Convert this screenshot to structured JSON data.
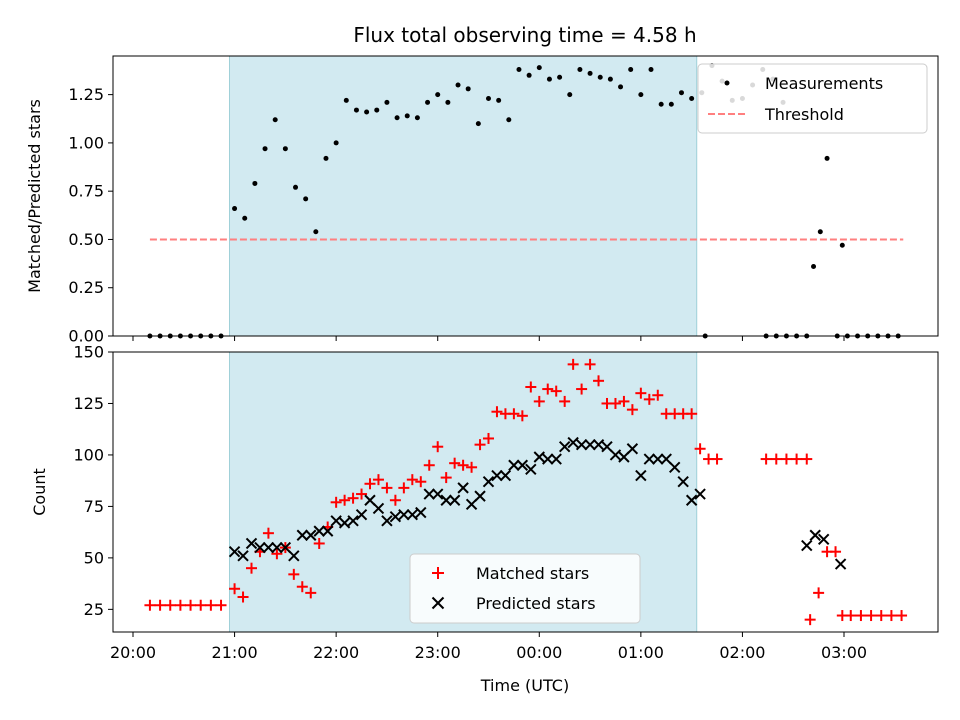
{
  "chart_data": [
    {
      "type": "scatter",
      "title": "Flux total observing time = 4.58 h",
      "xlabel": "",
      "ylabel": "Matched/Predicted stars",
      "xlim": [
        "20:00",
        "03:55"
      ],
      "ylim": [
        0,
        1.45
      ],
      "yticks": [
        "0.00",
        "0.25",
        "0.50",
        "0.75",
        "1.00",
        "1.25"
      ],
      "grid": false,
      "legend_position": "top-right",
      "shaded_span": {
        "start": "20:57",
        "end": "01:33",
        "color": "#add8e6"
      },
      "threshold": {
        "name": "Threshold",
        "value": 0.5,
        "x_start": "20:10",
        "x_end": "03:35",
        "color": "#ff7f7f"
      },
      "series": [
        {
          "name": "Measurements",
          "color": "#000000",
          "marker": "dot",
          "points": [
            [
              "20:10",
              0
            ],
            [
              "20:16",
              0
            ],
            [
              "20:22",
              0
            ],
            [
              "20:28",
              0
            ],
            [
              "20:34",
              0
            ],
            [
              "20:40",
              0
            ],
            [
              "20:46",
              0
            ],
            [
              "20:52",
              0
            ],
            [
              "21:00",
              0.66
            ],
            [
              "21:06",
              0.61
            ],
            [
              "21:12",
              0.79
            ],
            [
              "21:18",
              0.97
            ],
            [
              "21:24",
              1.12
            ],
            [
              "21:30",
              0.97
            ],
            [
              "21:36",
              0.77
            ],
            [
              "21:42",
              0.71
            ],
            [
              "21:48",
              0.54
            ],
            [
              "21:54",
              0.92
            ],
            [
              "22:00",
              1.0
            ],
            [
              "22:06",
              1.22
            ],
            [
              "22:12",
              1.17
            ],
            [
              "22:18",
              1.16
            ],
            [
              "22:24",
              1.17
            ],
            [
              "22:30",
              1.21
            ],
            [
              "22:36",
              1.13
            ],
            [
              "22:42",
              1.14
            ],
            [
              "22:48",
              1.13
            ],
            [
              "22:54",
              1.21
            ],
            [
              "23:00",
              1.25
            ],
            [
              "23:06",
              1.21
            ],
            [
              "23:12",
              1.3
            ],
            [
              "23:18",
              1.28
            ],
            [
              "23:24",
              1.1
            ],
            [
              "23:30",
              1.23
            ],
            [
              "23:36",
              1.22
            ],
            [
              "23:42",
              1.12
            ],
            [
              "23:48",
              1.38
            ],
            [
              "23:54",
              1.35
            ],
            [
              "00:00",
              1.39
            ],
            [
              "00:06",
              1.33
            ],
            [
              "00:12",
              1.34
            ],
            [
              "00:18",
              1.25
            ],
            [
              "00:24",
              1.38
            ],
            [
              "00:30",
              1.36
            ],
            [
              "00:36",
              1.34
            ],
            [
              "00:42",
              1.33
            ],
            [
              "00:48",
              1.29
            ],
            [
              "00:54",
              1.38
            ],
            [
              "01:00",
              1.25
            ],
            [
              "01:06",
              1.38
            ],
            [
              "01:12",
              1.2
            ],
            [
              "01:18",
              1.2
            ],
            [
              "01:24",
              1.26
            ],
            [
              "01:30",
              1.23
            ],
            [
              "01:36",
              1.26
            ],
            [
              "01:42",
              1.4
            ],
            [
              "01:48",
              1.32
            ],
            [
              "01:54",
              1.22
            ],
            [
              "02:00",
              1.23
            ],
            [
              "02:06",
              1.3
            ],
            [
              "02:12",
              1.38
            ],
            [
              "02:18",
              1.33
            ],
            [
              "02:24",
              1.21
            ],
            [
              "01:38",
              0
            ],
            [
              "02:14",
              0
            ],
            [
              "02:20",
              0
            ],
            [
              "02:26",
              0
            ],
            [
              "02:32",
              0
            ],
            [
              "02:38",
              0
            ],
            [
              "02:42",
              0.36
            ],
            [
              "02:46",
              0.54
            ],
            [
              "02:50",
              0.92
            ],
            [
              "02:56",
              0
            ],
            [
              "02:59",
              0.47
            ],
            [
              "03:02",
              0
            ],
            [
              "03:08",
              0
            ],
            [
              "03:14",
              0
            ],
            [
              "03:20",
              0
            ],
            [
              "03:26",
              0
            ],
            [
              "03:32",
              0
            ]
          ]
        }
      ]
    },
    {
      "type": "scatter",
      "title": "",
      "xlabel": "Time (UTC)",
      "ylabel": "Count",
      "xlim": [
        "20:00",
        "03:55"
      ],
      "ylim": [
        14,
        150
      ],
      "xticks": [
        "20:00",
        "21:00",
        "22:00",
        "23:00",
        "00:00",
        "01:00",
        "02:00",
        "03:00"
      ],
      "yticks": [
        "25",
        "50",
        "75",
        "100",
        "125",
        "150"
      ],
      "grid": false,
      "legend_position": "bottom-center",
      "shaded_span": {
        "start": "20:57",
        "end": "01:33",
        "color": "#add8e6"
      },
      "series": [
        {
          "name": "Matched stars",
          "color": "#ff0000",
          "marker": "plus",
          "points": [
            [
              "20:10",
              27
            ],
            [
              "20:16",
              27
            ],
            [
              "20:22",
              27
            ],
            [
              "20:28",
              27
            ],
            [
              "20:34",
              27
            ],
            [
              "20:40",
              27
            ],
            [
              "20:46",
              27
            ],
            [
              "20:52",
              27
            ],
            [
              "21:00",
              35
            ],
            [
              "21:05",
              31
            ],
            [
              "21:10",
              45
            ],
            [
              "21:15",
              53
            ],
            [
              "21:20",
              62
            ],
            [
              "21:25",
              52
            ],
            [
              "21:30",
              55
            ],
            [
              "21:35",
              42
            ],
            [
              "21:40",
              36
            ],
            [
              "21:45",
              33
            ],
            [
              "21:50",
              57
            ],
            [
              "21:55",
              65
            ],
            [
              "22:00",
              77
            ],
            [
              "22:05",
              78
            ],
            [
              "22:10",
              79
            ],
            [
              "22:15",
              81
            ],
            [
              "22:20",
              86
            ],
            [
              "22:25",
              88
            ],
            [
              "22:30",
              84
            ],
            [
              "22:35",
              78
            ],
            [
              "22:40",
              84
            ],
            [
              "22:45",
              88
            ],
            [
              "22:50",
              87
            ],
            [
              "22:55",
              95
            ],
            [
              "23:00",
              104
            ],
            [
              "23:05",
              89
            ],
            [
              "23:10",
              96
            ],
            [
              "23:15",
              95
            ],
            [
              "23:20",
              94
            ],
            [
              "23:25",
              105
            ],
            [
              "23:30",
              108
            ],
            [
              "23:35",
              121
            ],
            [
              "23:40",
              120
            ],
            [
              "23:45",
              120
            ],
            [
              "23:50",
              119
            ],
            [
              "23:55",
              133
            ],
            [
              "00:00",
              126
            ],
            [
              "00:05",
              132
            ],
            [
              "00:10",
              131
            ],
            [
              "00:15",
              126
            ],
            [
              "00:20",
              144
            ],
            [
              "00:25",
              132
            ],
            [
              "00:30",
              144
            ],
            [
              "00:35",
              136
            ],
            [
              "00:40",
              125
            ],
            [
              "00:45",
              125
            ],
            [
              "00:50",
              126
            ],
            [
              "00:55",
              122
            ],
            [
              "01:00",
              130
            ],
            [
              "01:05",
              127
            ],
            [
              "01:10",
              129
            ],
            [
              "01:15",
              120
            ],
            [
              "01:20",
              120
            ],
            [
              "01:25",
              120
            ],
            [
              "01:30",
              120
            ],
            [
              "01:35",
              103
            ],
            [
              "01:40",
              98
            ],
            [
              "01:45",
              98
            ],
            [
              "02:14",
              98
            ],
            [
              "02:20",
              98
            ],
            [
              "02:26",
              98
            ],
            [
              "02:32",
              98
            ],
            [
              "02:38",
              98
            ],
            [
              "02:40",
              20
            ],
            [
              "02:45",
              33
            ],
            [
              "02:50",
              53
            ],
            [
              "02:55",
              53
            ],
            [
              "02:59",
              22
            ],
            [
              "03:04",
              22
            ],
            [
              "03:10",
              22
            ],
            [
              "03:16",
              22
            ],
            [
              "03:22",
              22
            ],
            [
              "03:28",
              22
            ],
            [
              "03:34",
              22
            ]
          ]
        },
        {
          "name": "Predicted stars",
          "color": "#000000",
          "marker": "x",
          "points": [
            [
              "21:00",
              53
            ],
            [
              "21:05",
              51
            ],
            [
              "21:10",
              57
            ],
            [
              "21:15",
              55
            ],
            [
              "21:20",
              55
            ],
            [
              "21:25",
              55
            ],
            [
              "21:30",
              55
            ],
            [
              "21:35",
              51
            ],
            [
              "21:40",
              61
            ],
            [
              "21:45",
              61
            ],
            [
              "21:50",
              63
            ],
            [
              "21:55",
              63
            ],
            [
              "22:00",
              68
            ],
            [
              "22:05",
              67
            ],
            [
              "22:10",
              68
            ],
            [
              "22:15",
              71
            ],
            [
              "22:20",
              78
            ],
            [
              "22:25",
              74
            ],
            [
              "22:30",
              68
            ],
            [
              "22:35",
              70
            ],
            [
              "22:40",
              71
            ],
            [
              "22:45",
              71
            ],
            [
              "22:50",
              72
            ],
            [
              "22:55",
              81
            ],
            [
              "23:00",
              81
            ],
            [
              "23:05",
              78
            ],
            [
              "23:10",
              78
            ],
            [
              "23:15",
              84
            ],
            [
              "23:20",
              76
            ],
            [
              "23:25",
              80
            ],
            [
              "23:30",
              87
            ],
            [
              "23:35",
              90
            ],
            [
              "23:40",
              90
            ],
            [
              "23:45",
              95
            ],
            [
              "23:50",
              95
            ],
            [
              "23:55",
              93
            ],
            [
              "00:00",
              99
            ],
            [
              "00:05",
              98
            ],
            [
              "00:10",
              98
            ],
            [
              "00:15",
              104
            ],
            [
              "00:20",
              106
            ],
            [
              "00:25",
              105
            ],
            [
              "00:30",
              105
            ],
            [
              "00:35",
              105
            ],
            [
              "00:40",
              104
            ],
            [
              "00:45",
              100
            ],
            [
              "00:50",
              99
            ],
            [
              "00:55",
              103
            ],
            [
              "01:00",
              90
            ],
            [
              "01:05",
              98
            ],
            [
              "01:10",
              98
            ],
            [
              "01:15",
              98
            ],
            [
              "01:20",
              94
            ],
            [
              "01:25",
              87
            ],
            [
              "01:30",
              78
            ],
            [
              "01:35",
              81
            ],
            [
              "02:38",
              56
            ],
            [
              "02:43",
              61
            ],
            [
              "02:48",
              59
            ],
            [
              "02:58",
              47
            ]
          ]
        }
      ]
    }
  ]
}
